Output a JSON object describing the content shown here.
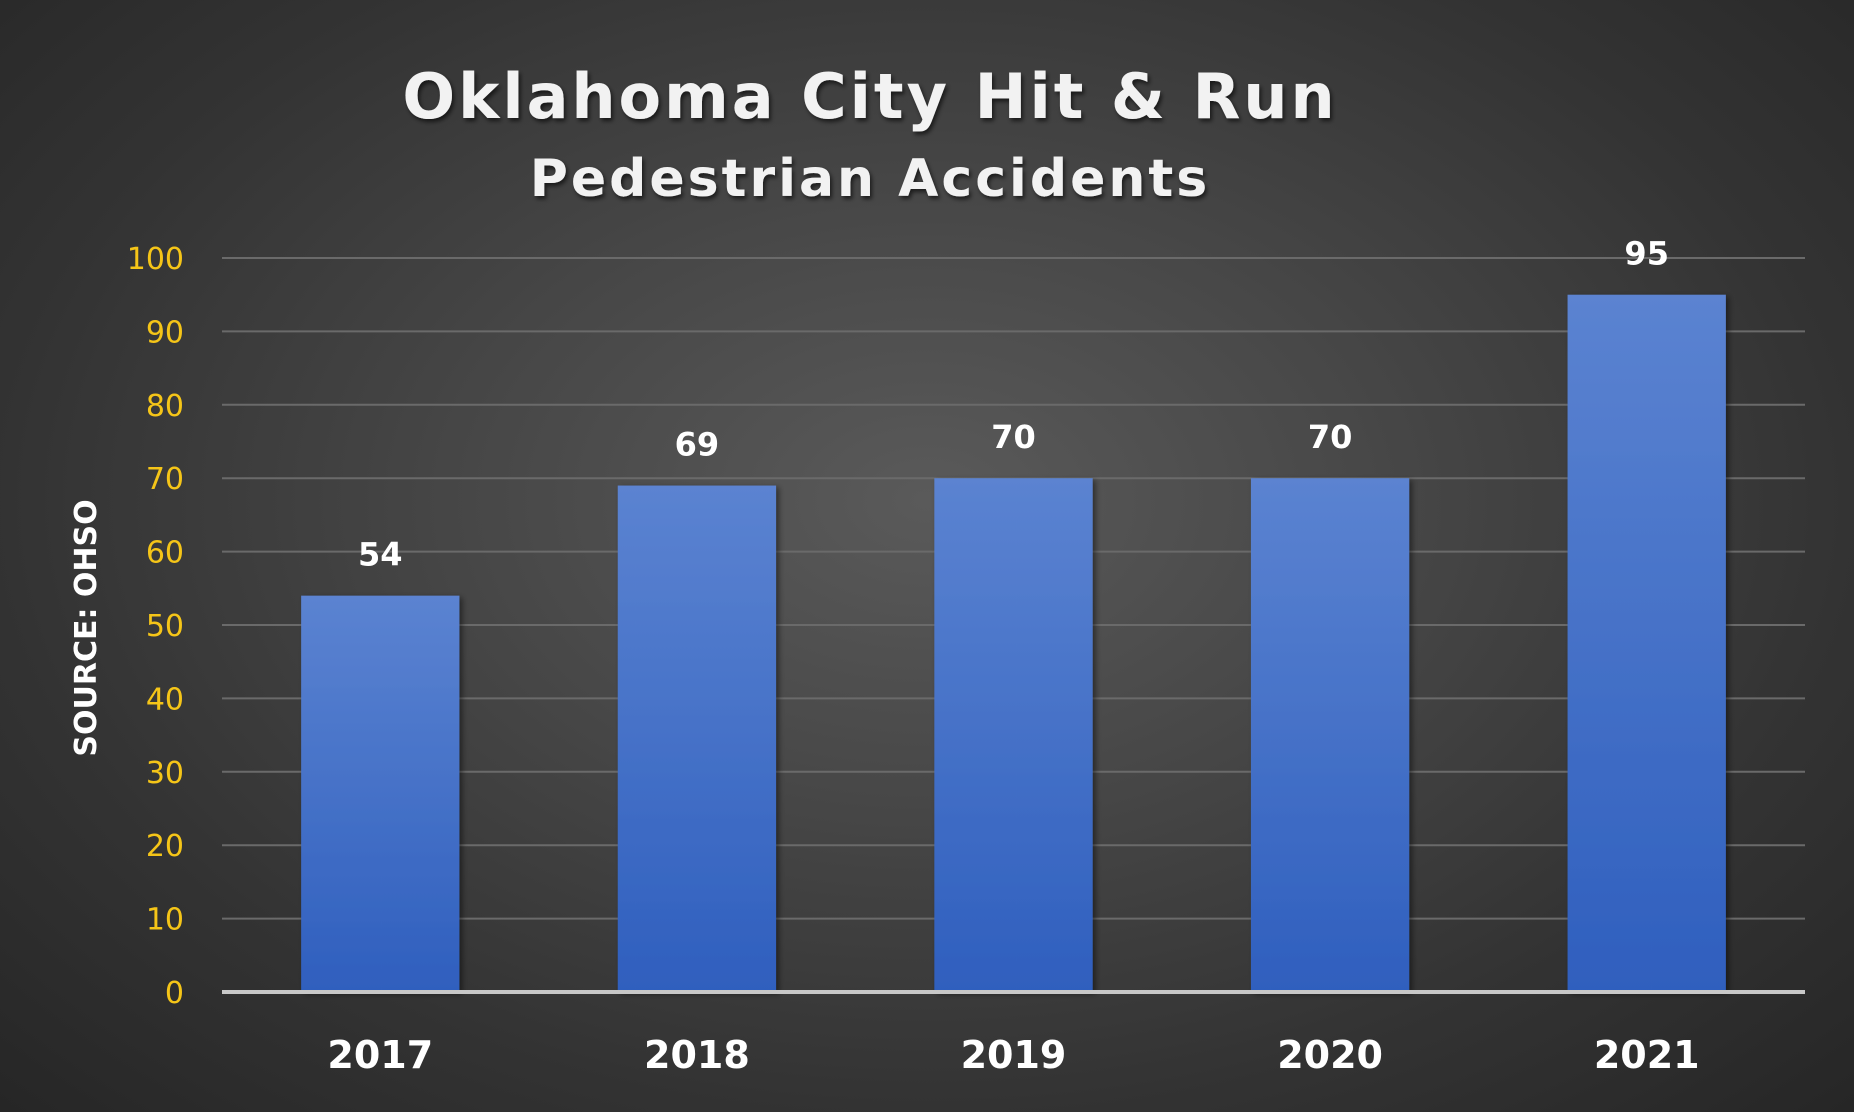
{
  "chart_data": {
    "type": "bar",
    "title": "Oklahoma City Hit & Run",
    "subtitle": "Pedestrian Accidents",
    "ylabel": "SOURCE: OHSO",
    "xlabel": "",
    "categories": [
      "2017",
      "2018",
      "2019",
      "2020",
      "2021"
    ],
    "values": [
      54,
      69,
      70,
      70,
      95
    ],
    "data_labels": [
      "54",
      "69",
      "70",
      "70",
      "95"
    ],
    "ylim": [
      0,
      100
    ],
    "yticks": [
      0,
      10,
      20,
      30,
      40,
      50,
      60,
      70,
      80,
      90,
      100
    ],
    "ytick_labels": [
      "0",
      "10",
      "20",
      "30",
      "40",
      "50",
      "60",
      "70",
      "80",
      "90",
      "100"
    ],
    "grid": true,
    "legend": "none",
    "colors": {
      "bar_top": "#5b83d1",
      "bar_bottom": "#2f5fbe",
      "ytick": "#f5c518",
      "text": "#ffffff",
      "gridline": "#6a6a6a",
      "baseline": "#c8c8c8"
    }
  }
}
